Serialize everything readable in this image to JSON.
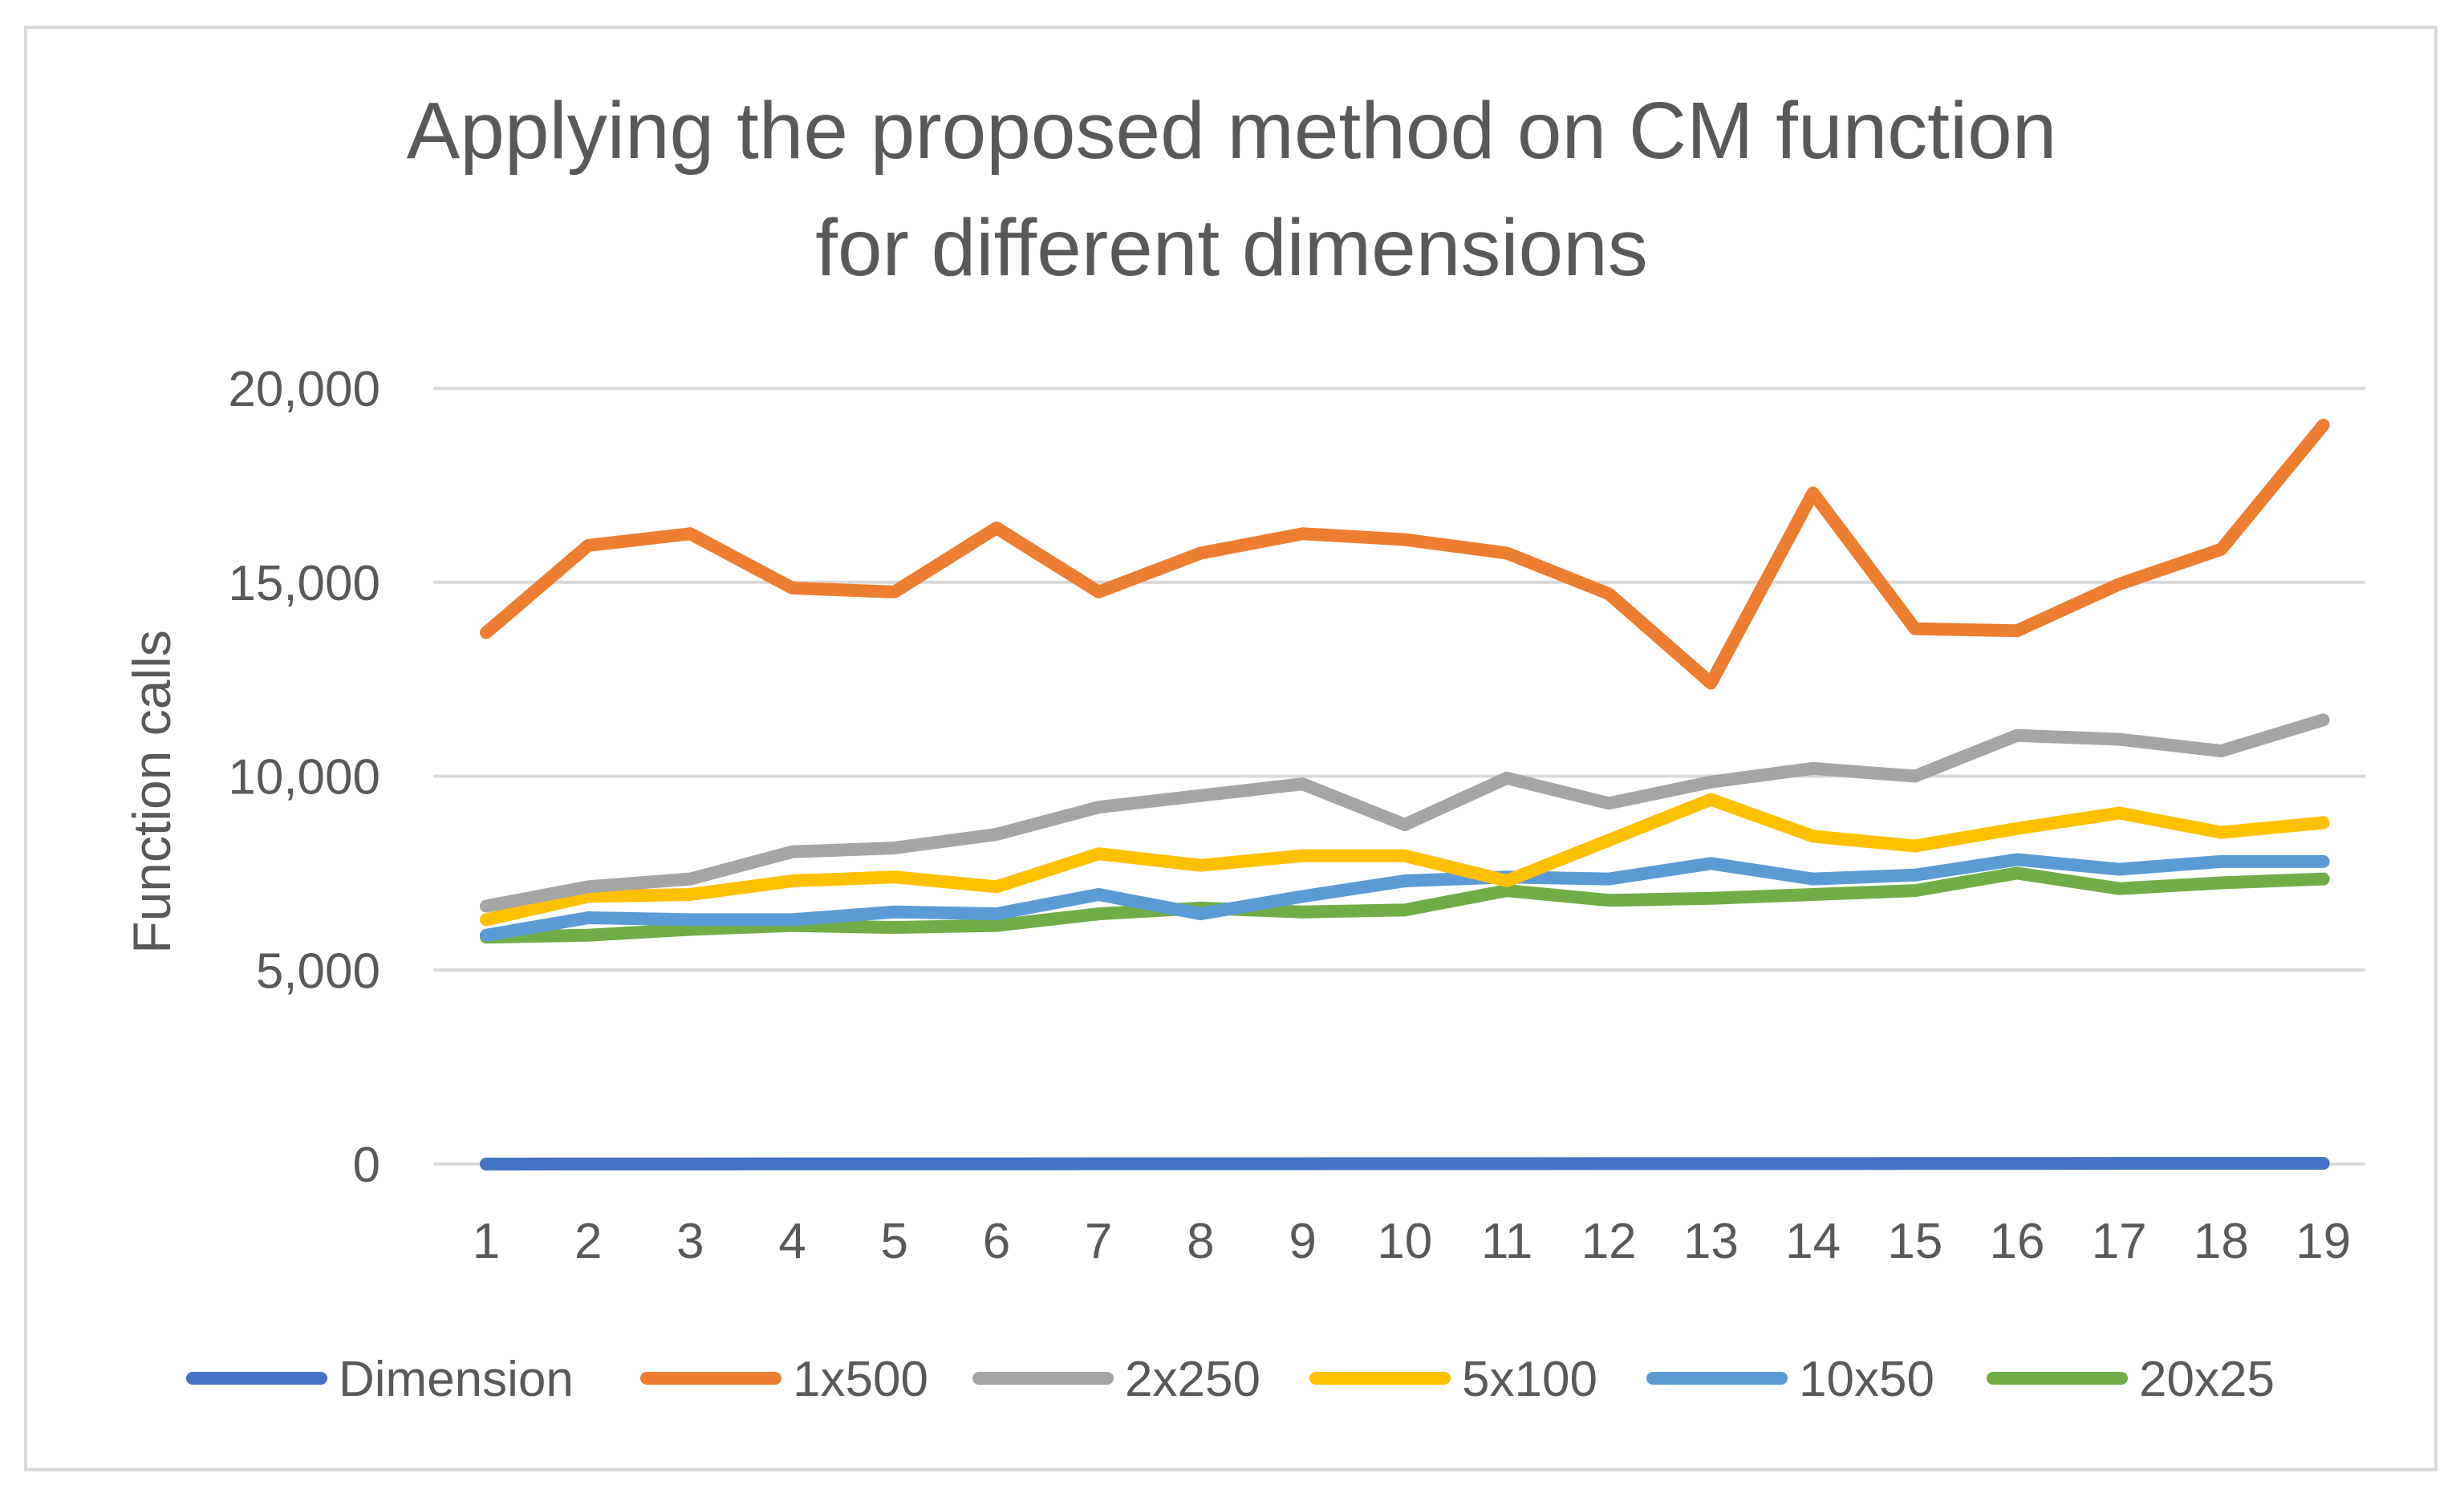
{
  "chart_data": {
    "type": "line",
    "title": "Applying the proposed method on CM function for different dimensions",
    "title_lines": [
      "Applying the proposed method on CM function",
      "for different dimensions"
    ],
    "xlabel": "",
    "ylabel": "Function calls",
    "ylim": [
      0,
      20000
    ],
    "yticks": [
      0,
      5000,
      10000,
      15000,
      20000
    ],
    "ytick_labels": [
      "0",
      "5,000",
      "10,000",
      "15,000",
      "20,000"
    ],
    "grid": true,
    "legend_position": "bottom",
    "categories": [
      "1",
      "2",
      "3",
      "4",
      "5",
      "6",
      "7",
      "8",
      "9",
      "10",
      "11",
      "12",
      "13",
      "14",
      "15",
      "16",
      "17",
      "18",
      "19"
    ],
    "series": [
      {
        "name": "Dimension",
        "color": "#4472c4",
        "values": [
          1,
          2,
          3,
          4,
          5,
          6,
          7,
          8,
          9,
          10,
          11,
          12,
          13,
          14,
          15,
          16,
          17,
          18,
          19
        ]
      },
      {
        "name": "1x500",
        "color": "#ed7d31",
        "values": [
          13700,
          15950,
          16250,
          14850,
          14750,
          16400,
          14750,
          15750,
          16250,
          16100,
          15750,
          14700,
          12400,
          17300,
          13800,
          13750,
          14950,
          15850,
          19050
        ]
      },
      {
        "name": "2x250",
        "color": "#a5a5a5",
        "values": [
          6650,
          7150,
          7350,
          8050,
          8150,
          8500,
          9200,
          9500,
          9800,
          8750,
          9950,
          9300,
          9850,
          10200,
          10000,
          11050,
          10950,
          10650,
          11450
        ]
      },
      {
        "name": "5x100",
        "color": "#ffc000",
        "values": [
          6300,
          6900,
          6950,
          7300,
          7400,
          7150,
          8000,
          7700,
          7950,
          7950,
          7300,
          8350,
          9400,
          8450,
          8200,
          8650,
          9050,
          8550,
          8800
        ]
      },
      {
        "name": "10x50",
        "color": "#5b9bd5",
        "values": [
          5900,
          6350,
          6300,
          6300,
          6500,
          6450,
          6950,
          6450,
          6900,
          7300,
          7400,
          7350,
          7750,
          7350,
          7450,
          7850,
          7600,
          7800,
          7800
        ]
      },
      {
        "name": "20x25",
        "color": "#70ad47",
        "values": [
          5850,
          5900,
          6050,
          6150,
          6100,
          6150,
          6450,
          6600,
          6500,
          6550,
          7050,
          6800,
          6850,
          6950,
          7050,
          7500,
          7100,
          7250,
          7350
        ]
      }
    ]
  }
}
